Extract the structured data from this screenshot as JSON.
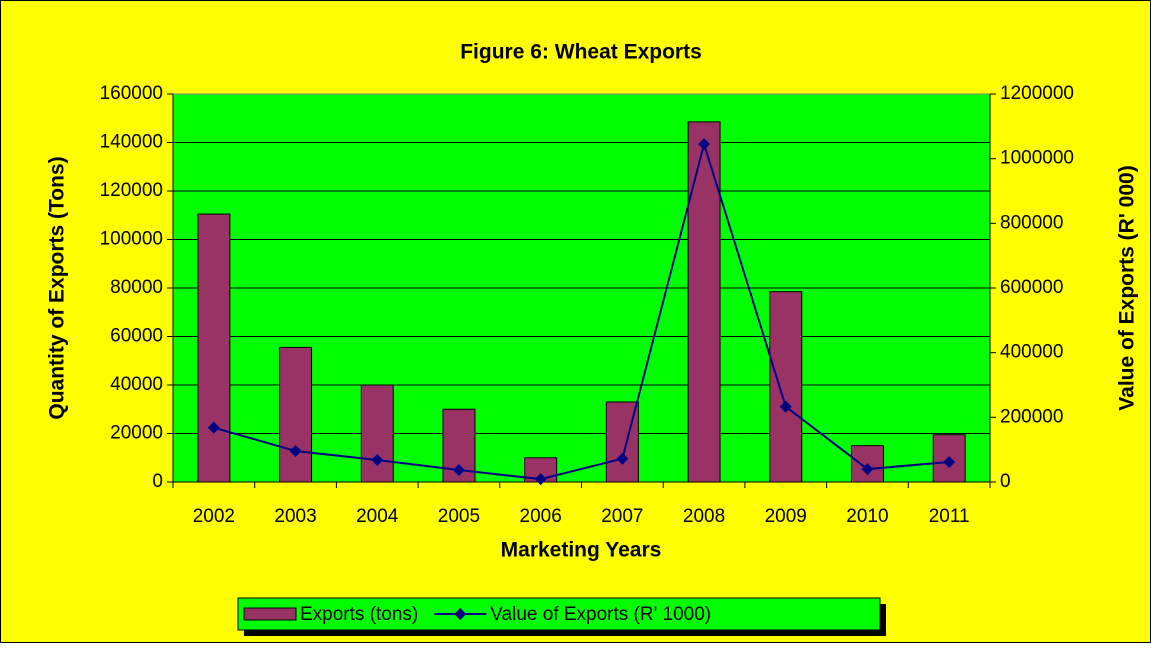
{
  "chart_data": {
    "type": "bar",
    "title": "Figure 6: Wheat Exports",
    "xlabel": "Marketing Years",
    "ylabel": "Quantity of Exports (Tons)",
    "y2label": "Value of Exports (R' 000)",
    "categories": [
      "2002",
      "2003",
      "2004",
      "2005",
      "2006",
      "2007",
      "2008",
      "2009",
      "2010",
      "2011"
    ],
    "series": [
      {
        "name": "Exports (tons)",
        "type": "bar",
        "color": "#993366",
        "values": [
          110500,
          55500,
          40000,
          30000,
          10000,
          33000,
          148500,
          78500,
          15000,
          19500
        ]
      },
      {
        "name": "Value of Exports (R' 1000)",
        "type": "line",
        "axis": "y2",
        "color": "#000080",
        "values": [
          168000,
          96000,
          68000,
          37000,
          9000,
          72000,
          1045000,
          233000,
          40000,
          62000
        ]
      }
    ],
    "ylim": [
      0,
      160000
    ],
    "yticks": [
      0,
      20000,
      40000,
      60000,
      80000,
      100000,
      120000,
      140000,
      160000
    ],
    "y2lim": [
      0,
      1200000
    ],
    "y2ticks": [
      0,
      200000,
      400000,
      600000,
      800000,
      1000000,
      1200000
    ],
    "grid": true,
    "legend": "bottom"
  }
}
